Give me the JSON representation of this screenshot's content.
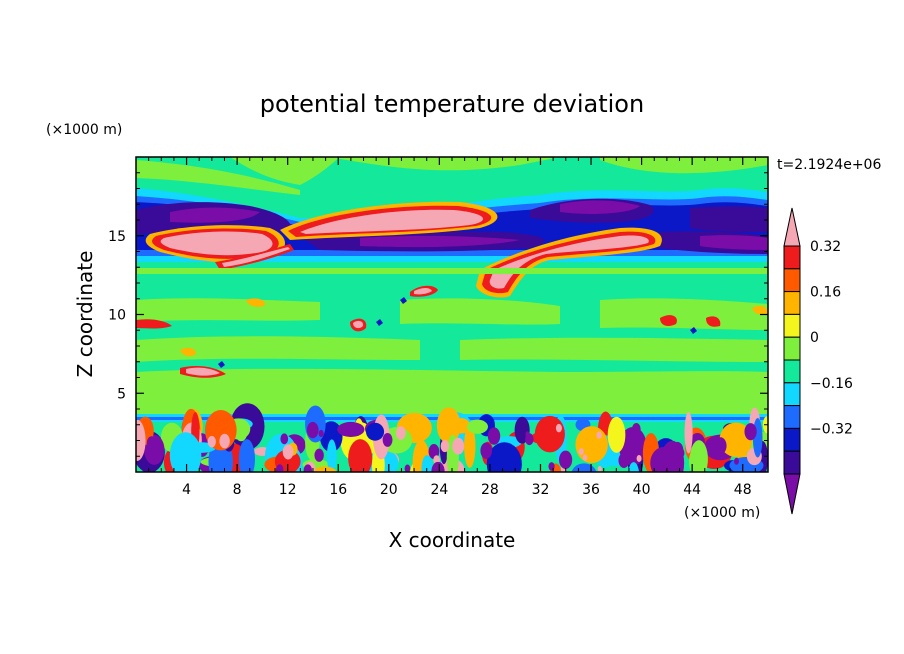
{
  "chart_data": {
    "type": "heatmap",
    "title": "potential temperature deviation",
    "xlabel": "X coordinate",
    "ylabel": "Z coordinate",
    "x_unit": "(×1000 m)",
    "y_unit": "(×1000 m)",
    "time_label": "t=2.1924e+06",
    "xlim": [
      0,
      50
    ],
    "ylim": [
      0,
      20
    ],
    "x_ticks": [
      "4",
      "8",
      "12",
      "16",
      "20",
      "24",
      "28",
      "32",
      "36",
      "40",
      "44",
      "48"
    ],
    "y_ticks": [
      "5",
      "10",
      "15"
    ],
    "colorbar": {
      "levels": [
        -0.4,
        -0.32,
        -0.24,
        -0.16,
        -0.08,
        0,
        0.08,
        0.16,
        0.24,
        0.32,
        0.4
      ],
      "tick_labels": [
        "0.32",
        "0.16",
        "0",
        "−0.16",
        "−0.32"
      ],
      "colors_low_to_high": [
        "#7a0ca8",
        "#3a0a99",
        "#0a18c8",
        "#1e6cff",
        "#12d8ff",
        "#14e89a",
        "#7eef3c",
        "#f5f51e",
        "#ffb400",
        "#ff5a00",
        "#ee1c1c",
        "#f5a8b4"
      ],
      "extend": "both"
    },
    "bands": [
      {
        "z_range": [
          17,
          20
        ],
        "value": "≈ 0 (near-neutral, green/light-green)"
      },
      {
        "z_range": [
          16,
          17.5
        ],
        "value": "strong negative (−0.32 to below) over x≈4–12, 34–44"
      },
      {
        "z_range": [
          13.5,
          16.5
        ],
        "value": "strong positive (>0.32) lens features at x≈2–10, 12–24, 27–40"
      },
      {
        "z_range": [
          13,
          14.5
        ],
        "value": "strong negative at x≈14–30, 44–50"
      },
      {
        "z_range": [
          4,
          13
        ],
        "value": "weak positive / near zero (0 to 0.08)"
      },
      {
        "z_range": [
          0,
          4
        ],
        "value": "alternating small-scale positive and negative cells (±0.4)"
      }
    ]
  }
}
